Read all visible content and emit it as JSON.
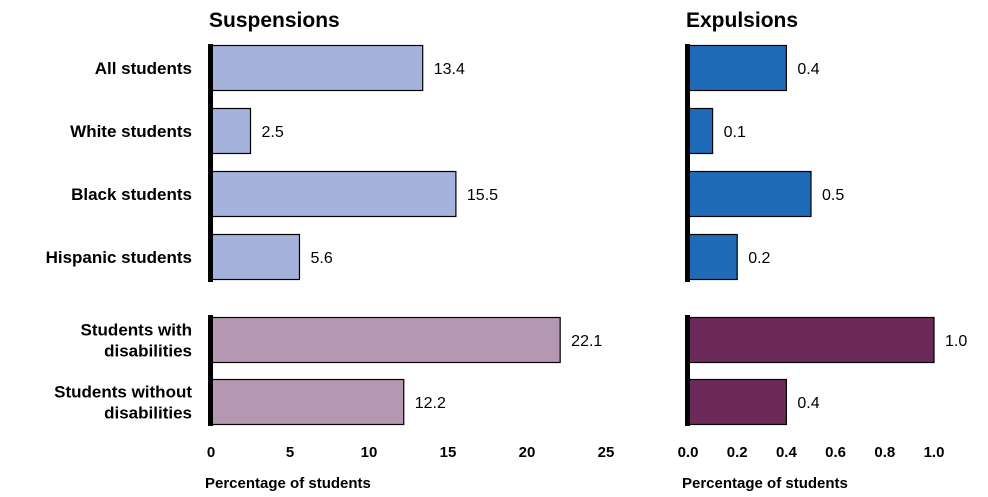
{
  "chart_data": [
    {
      "type": "bar",
      "orientation": "horizontal",
      "title": "Suspensions",
      "xlabel": "Percentage of students",
      "xlim": [
        0,
        25
      ],
      "xticks": [
        0,
        5,
        10,
        15,
        20,
        25
      ],
      "categories": [
        [
          "All students"
        ],
        [
          "White students"
        ],
        [
          "Black students"
        ],
        [
          "Hispanic students"
        ],
        [
          "Students with",
          "disabilities"
        ],
        [
          "Students without",
          "disabilities"
        ]
      ],
      "values": [
        13.4,
        2.5,
        15.5,
        5.6,
        22.1,
        12.2
      ],
      "value_labels": [
        "13.4",
        "2.5",
        "15.5",
        "5.6",
        "22.1",
        "12.2"
      ],
      "colors": [
        "#a4b2dc",
        "#a4b2dc",
        "#a4b2dc",
        "#a4b2dc",
        "#b597b1",
        "#b597b1"
      ],
      "groups": [
        [
          0,
          1,
          2,
          3
        ],
        [
          4,
          5
        ]
      ],
      "grid": false
    },
    {
      "type": "bar",
      "orientation": "horizontal",
      "title": "Expulsions",
      "xlabel": "Percentage of students",
      "xlim": [
        0,
        1.0
      ],
      "xticks": [
        0.0,
        0.2,
        0.4,
        0.6,
        0.8,
        1.0
      ],
      "categories": [
        [
          "All students"
        ],
        [
          "White students"
        ],
        [
          "Black students"
        ],
        [
          "Hispanic students"
        ],
        [
          "Students with",
          "disabilities"
        ],
        [
          "Students without",
          "disabilities"
        ]
      ],
      "values": [
        0.4,
        0.1,
        0.5,
        0.2,
        1.0,
        0.4
      ],
      "value_labels": [
        "0.4",
        "0.1",
        "0.5",
        "0.2",
        "1.0",
        "0.4"
      ],
      "colors": [
        "#1f6bb8",
        "#1f6bb8",
        "#1f6bb8",
        "#1f6bb8",
        "#6b2a5a",
        "#6b2a5a"
      ],
      "groups": [
        [
          0,
          1,
          2,
          3
        ],
        [
          4,
          5
        ]
      ],
      "grid": false
    }
  ]
}
